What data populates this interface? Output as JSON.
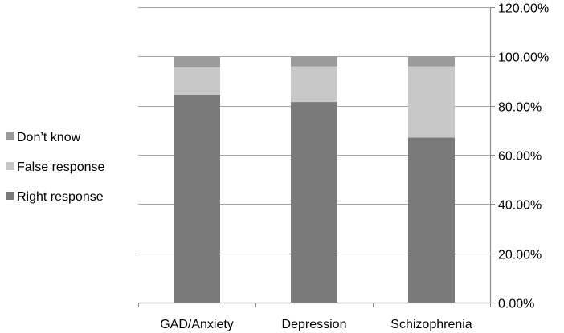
{
  "chart_data": {
    "type": "bar",
    "stacked": true,
    "categories": [
      "GAD/Anxiety",
      "Depression",
      "Schizophrenia"
    ],
    "series": [
      {
        "name": "Right response",
        "values": [
          0.845,
          0.815,
          0.67
        ],
        "color": "#7a7a7a"
      },
      {
        "name": "False response",
        "values": [
          0.11,
          0.145,
          0.29
        ],
        "color": "#c8c8c8"
      },
      {
        "name": "Don’t know",
        "values": [
          0.045,
          0.04,
          0.04
        ],
        "color": "#9b9b9b"
      }
    ],
    "legend_order": [
      "Don’t know",
      "False response",
      "Right response"
    ],
    "ylim": [
      0,
      1.2
    ],
    "yticks": [
      0,
      0.2,
      0.4,
      0.6,
      0.8,
      1.0,
      1.2
    ],
    "ytick_labels": [
      "0.00%",
      "20.00%",
      "40.00%",
      "60.00%",
      "80.00%",
      "100.00%",
      "120.00%"
    ],
    "y_axis_side": "right",
    "grid": true,
    "legend_position": "left",
    "title": "",
    "xlabel": "",
    "ylabel": ""
  }
}
